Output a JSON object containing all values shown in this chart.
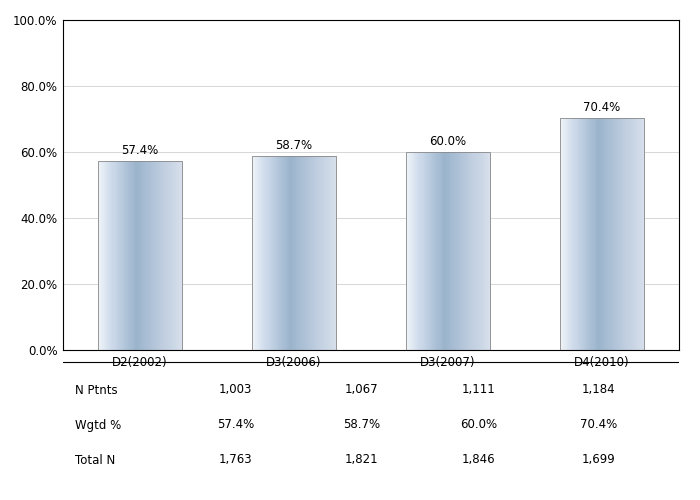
{
  "categories": [
    "D2(2002)",
    "D3(2006)",
    "D3(2007)",
    "D4(2010)"
  ],
  "values": [
    57.4,
    58.7,
    60.0,
    70.4
  ],
  "n_ptnts": [
    "1,003",
    "1,067",
    "1,111",
    "1,184"
  ],
  "wgtd_pct": [
    "57.4%",
    "58.7%",
    "60.0%",
    "70.4%"
  ],
  "total_n": [
    "1,763",
    "1,821",
    "1,846",
    "1,699"
  ],
  "ylim": [
    0,
    100
  ],
  "yticks": [
    0,
    20,
    40,
    60,
    80,
    100
  ],
  "ytick_labels": [
    "0.0%",
    "20.0%",
    "40.0%",
    "60.0%",
    "80.0%",
    "100.0%"
  ],
  "value_label_fontsize": 8.5,
  "axis_fontsize": 8.5,
  "table_fontsize": 8.5,
  "bar_width": 0.55,
  "background_color": "#ffffff",
  "grid_color": "#c8c8c8",
  "border_color": "#000000"
}
